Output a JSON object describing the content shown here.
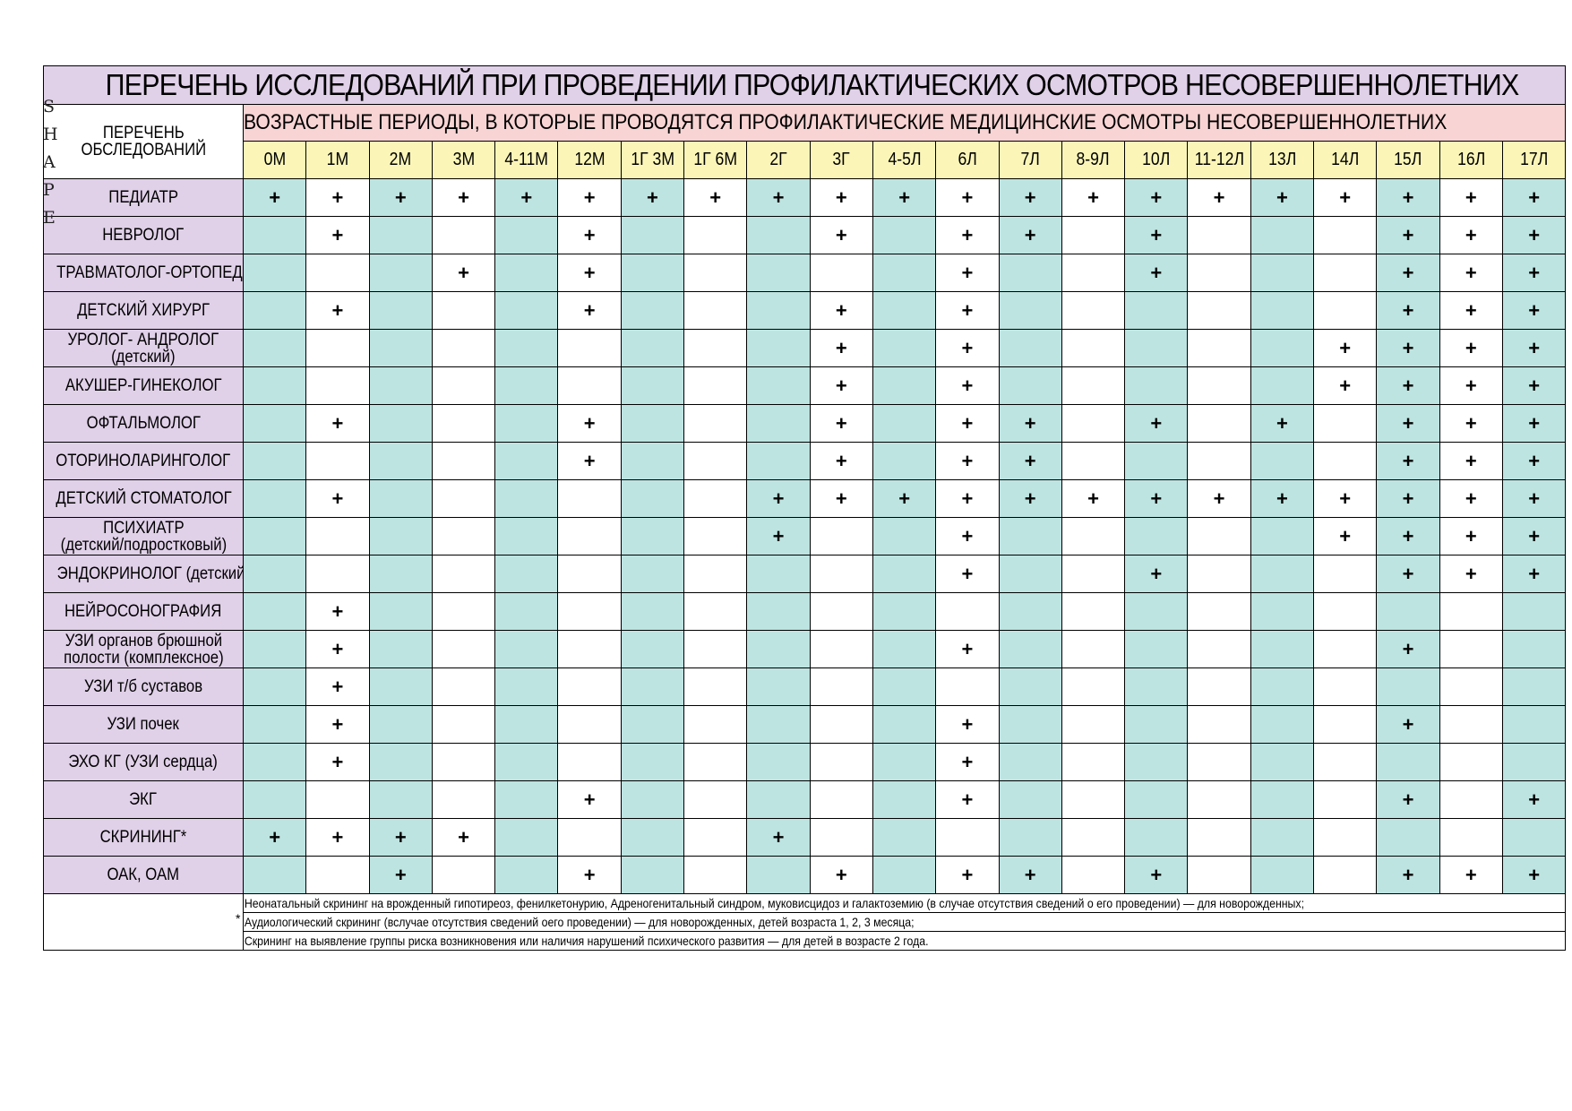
{
  "title": "ПЕРЕЧЕНЬ ИССЛЕДОВАНИЙ ПРИ ПРОВЕДЕНИИ ПРОФИЛАКТИЧЕСКИХ ОСМОТРОВ НЕСОВЕРШЕННОЛЕТНИХ",
  "list_header": [
    "ПЕРЕЧЕНЬ",
    "ОБСЛЕДОВАНИЙ"
  ],
  "periods_header": "ВОЗРАСТНЫЕ ПЕРИОДЫ, В КОТОРЫЕ ПРОВОДЯТСЯ ПРОФИЛАКТИЧЕСКИЕ МЕДИЦИНСКИЕ ОСМОТРЫ НЕСОВЕРШЕННОЛЕТНИХ",
  "shape_letters": [
    "S",
    "H",
    "A",
    "P",
    "E"
  ],
  "mark": "+",
  "ages": [
    "0М",
    "1М",
    "2М",
    "3М",
    "4-11М",
    "12М",
    "1Г 3М",
    "1Г 6М",
    "2Г",
    "3Г",
    "4-5Л",
    "6Л",
    "7Л",
    "8-9Л",
    "10Л",
    "11-12Л",
    "13Л",
    "14Л",
    "15Л",
    "16Л",
    "17Л"
  ],
  "rows": [
    {
      "label": [
        "ПЕДИАТР"
      ],
      "marks": [
        1,
        1,
        1,
        1,
        1,
        1,
        1,
        1,
        1,
        1,
        1,
        1,
        1,
        1,
        1,
        1,
        1,
        1,
        1,
        1,
        1
      ]
    },
    {
      "label": [
        "НЕВРОЛОГ"
      ],
      "marks": [
        0,
        1,
        0,
        0,
        0,
        1,
        0,
        0,
        0,
        1,
        0,
        1,
        1,
        0,
        1,
        0,
        0,
        0,
        1,
        1,
        1
      ]
    },
    {
      "label": [
        "ТРАВМАТОЛОГ-ОРТОПЕД"
      ],
      "marks": [
        0,
        0,
        0,
        1,
        0,
        1,
        0,
        0,
        0,
        0,
        0,
        1,
        0,
        0,
        1,
        0,
        0,
        0,
        1,
        1,
        1
      ]
    },
    {
      "label": [
        "ДЕТСКИЙ ХИРУРГ"
      ],
      "marks": [
        0,
        1,
        0,
        0,
        0,
        1,
        0,
        0,
        0,
        1,
        0,
        1,
        0,
        0,
        0,
        0,
        0,
        0,
        1,
        1,
        1
      ]
    },
    {
      "label": [
        "УРОЛОГ- АНДРОЛОГ",
        "(детский)"
      ],
      "marks": [
        0,
        0,
        0,
        0,
        0,
        0,
        0,
        0,
        0,
        1,
        0,
        1,
        0,
        0,
        0,
        0,
        0,
        1,
        1,
        1,
        1
      ]
    },
    {
      "label": [
        "АКУШЕР-ГИНЕКОЛОГ"
      ],
      "marks": [
        0,
        0,
        0,
        0,
        0,
        0,
        0,
        0,
        0,
        1,
        0,
        1,
        0,
        0,
        0,
        0,
        0,
        1,
        1,
        1,
        1
      ]
    },
    {
      "label": [
        "ОФТАЛЬМОЛОГ"
      ],
      "marks": [
        0,
        1,
        0,
        0,
        0,
        1,
        0,
        0,
        0,
        1,
        0,
        1,
        1,
        0,
        1,
        0,
        1,
        0,
        1,
        1,
        1
      ]
    },
    {
      "label": [
        "ОТОРИНОЛАРИНГОЛОГ"
      ],
      "marks": [
        0,
        0,
        0,
        0,
        0,
        1,
        0,
        0,
        0,
        1,
        0,
        1,
        1,
        0,
        0,
        0,
        0,
        0,
        1,
        1,
        1
      ]
    },
    {
      "label": [
        "ДЕТСКИЙ СТОМАТОЛОГ"
      ],
      "marks": [
        0,
        1,
        0,
        0,
        0,
        0,
        0,
        0,
        1,
        1,
        1,
        1,
        1,
        1,
        1,
        1,
        1,
        1,
        1,
        1,
        1
      ]
    },
    {
      "label": [
        "ПСИХИАТР",
        "(детский/подростковый)"
      ],
      "marks": [
        0,
        0,
        0,
        0,
        0,
        0,
        0,
        0,
        1,
        0,
        0,
        1,
        0,
        0,
        0,
        0,
        0,
        1,
        1,
        1,
        1
      ]
    },
    {
      "label": [
        "ЭНДОКРИНОЛОГ (детский)"
      ],
      "marks": [
        0,
        0,
        0,
        0,
        0,
        0,
        0,
        0,
        0,
        0,
        0,
        1,
        0,
        0,
        1,
        0,
        0,
        0,
        1,
        1,
        1
      ]
    },
    {
      "label": [
        "НЕЙРОСОНОГРАФИЯ"
      ],
      "marks": [
        0,
        1,
        0,
        0,
        0,
        0,
        0,
        0,
        0,
        0,
        0,
        0,
        0,
        0,
        0,
        0,
        0,
        0,
        0,
        0,
        0
      ]
    },
    {
      "label": [
        "УЗИ органов брюшной",
        "полости (комплексное)"
      ],
      "marks": [
        0,
        1,
        0,
        0,
        0,
        0,
        0,
        0,
        0,
        0,
        0,
        1,
        0,
        0,
        0,
        0,
        0,
        0,
        1,
        0,
        0
      ]
    },
    {
      "label": [
        "УЗИ т/б суставов"
      ],
      "marks": [
        0,
        1,
        0,
        0,
        0,
        0,
        0,
        0,
        0,
        0,
        0,
        0,
        0,
        0,
        0,
        0,
        0,
        0,
        0,
        0,
        0
      ]
    },
    {
      "label": [
        "УЗИ почек"
      ],
      "marks": [
        0,
        1,
        0,
        0,
        0,
        0,
        0,
        0,
        0,
        0,
        0,
        1,
        0,
        0,
        0,
        0,
        0,
        0,
        1,
        0,
        0
      ]
    },
    {
      "label": [
        "ЭХО КГ (УЗИ сердца)"
      ],
      "marks": [
        0,
        1,
        0,
        0,
        0,
        0,
        0,
        0,
        0,
        0,
        0,
        1,
        0,
        0,
        0,
        0,
        0,
        0,
        0,
        0,
        0
      ]
    },
    {
      "label": [
        "ЭКГ"
      ],
      "marks": [
        0,
        0,
        0,
        0,
        0,
        1,
        0,
        0,
        0,
        0,
        0,
        1,
        0,
        0,
        0,
        0,
        0,
        0,
        1,
        0,
        1
      ]
    },
    {
      "label": [
        "СКРИНИНГ*"
      ],
      "marks": [
        1,
        1,
        1,
        1,
        0,
        0,
        0,
        0,
        1,
        0,
        0,
        0,
        0,
        0,
        0,
        0,
        0,
        0,
        0,
        0,
        0
      ]
    },
    {
      "label": [
        "ОАК, ОАМ"
      ],
      "marks": [
        0,
        0,
        1,
        0,
        0,
        1,
        0,
        0,
        0,
        1,
        0,
        1,
        1,
        0,
        1,
        0,
        0,
        0,
        1,
        1,
        1
      ]
    }
  ],
  "footnote_star": "*",
  "footnotes": [
    "Неонатальный скрининг на врожденный гипотиреоз, фенилкетонурию, Адреногенитальный синдром, муковисцидоз и галактоземию (в случае отсутствия сведений о его проведении) — для новорожденных;",
    "Аудиологический скрининг (вслучае отсутствия сведений оего проведении) — для новорожденных, детей возраста 1, 2, 3 месяца;",
    "Скрининг на выявление группы риска возникновения или наличия нарушений психического развития — для детей в возрасте 2 года."
  ],
  "colors": {
    "title_bg": "#e0d0e8",
    "periods_bg": "#f8d4d4",
    "age_bg": "#fbf6b8",
    "teal": "#bde4e1"
  }
}
